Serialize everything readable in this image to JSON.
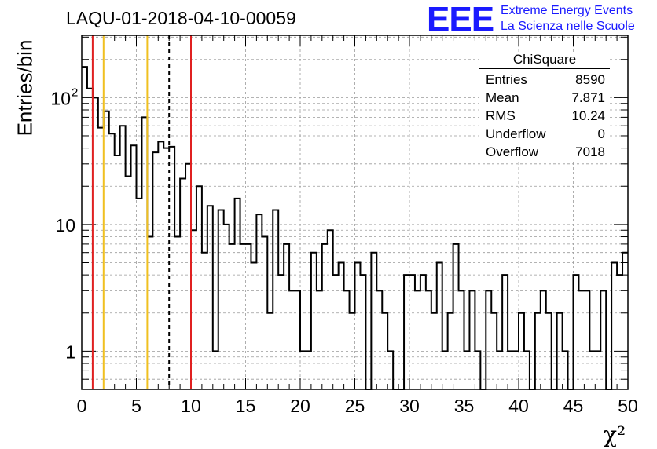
{
  "title": "LAQU-01-2018-04-10-00059",
  "logo": {
    "mark": "EEE",
    "line1": "Extreme Energy Events",
    "line2": "La Scienza nelle Scuole"
  },
  "stats": {
    "title": "ChiSquare",
    "rows": [
      {
        "label": "Entries",
        "value": "8590"
      },
      {
        "label": "Mean",
        "value": "7.871"
      },
      {
        "label": "RMS",
        "value": "10.24"
      },
      {
        "label": "Underflow",
        "value": "0"
      },
      {
        "label": "Overflow",
        "value": "7018"
      }
    ]
  },
  "colors": {
    "red_line": "#e02020",
    "yellow_line": "#f0c020",
    "frame": "#000000",
    "grid": "#9a9a9a"
  },
  "chart_data": {
    "type": "histogram",
    "xlabel": "χ²",
    "ylabel": "Entries/bin",
    "xlim": [
      0,
      50
    ],
    "ylim": [
      0.5,
      310
    ],
    "yscale": "log",
    "grid": true,
    "bin_width": 0.5,
    "x_ticks": [
      "0",
      "5",
      "10",
      "15",
      "20",
      "25",
      "30",
      "35",
      "40",
      "45",
      "50"
    ],
    "y_ticks": [
      {
        "value": 1,
        "label": "1"
      },
      {
        "value": 10,
        "label": "10"
      },
      {
        "value": 100,
        "label": "10",
        "sup": "2"
      }
    ],
    "values": [
      175,
      118,
      100,
      58,
      78,
      52,
      35,
      60,
      24,
      42,
      16,
      70,
      8,
      37,
      45,
      40,
      41,
      8,
      23,
      30,
      9,
      20,
      6,
      14,
      1,
      13,
      10,
      7,
      16,
      7,
      7,
      5,
      12,
      8,
      2,
      13,
      4,
      7,
      3,
      3,
      1,
      1,
      6,
      3,
      7,
      9,
      4,
      5,
      3,
      2,
      5,
      4,
      0,
      6,
      3,
      2,
      1,
      0,
      0,
      4,
      4,
      3,
      4,
      3,
      2,
      5,
      1,
      2,
      7,
      3,
      1,
      3,
      1,
      0,
      3,
      2,
      1,
      4,
      1,
      1,
      2,
      1,
      0,
      2,
      3,
      2,
      0,
      2,
      1,
      0,
      4,
      3,
      3,
      1,
      1,
      3,
      0,
      5,
      4,
      6
    ],
    "vertical_lines": [
      {
        "x": 1,
        "color": "red",
        "style": "solid"
      },
      {
        "x": 2,
        "color": "yellow",
        "style": "solid"
      },
      {
        "x": 6,
        "color": "yellow",
        "style": "solid"
      },
      {
        "x": 8,
        "color": "black",
        "style": "dashed"
      },
      {
        "x": 10,
        "color": "red",
        "style": "solid"
      }
    ]
  }
}
